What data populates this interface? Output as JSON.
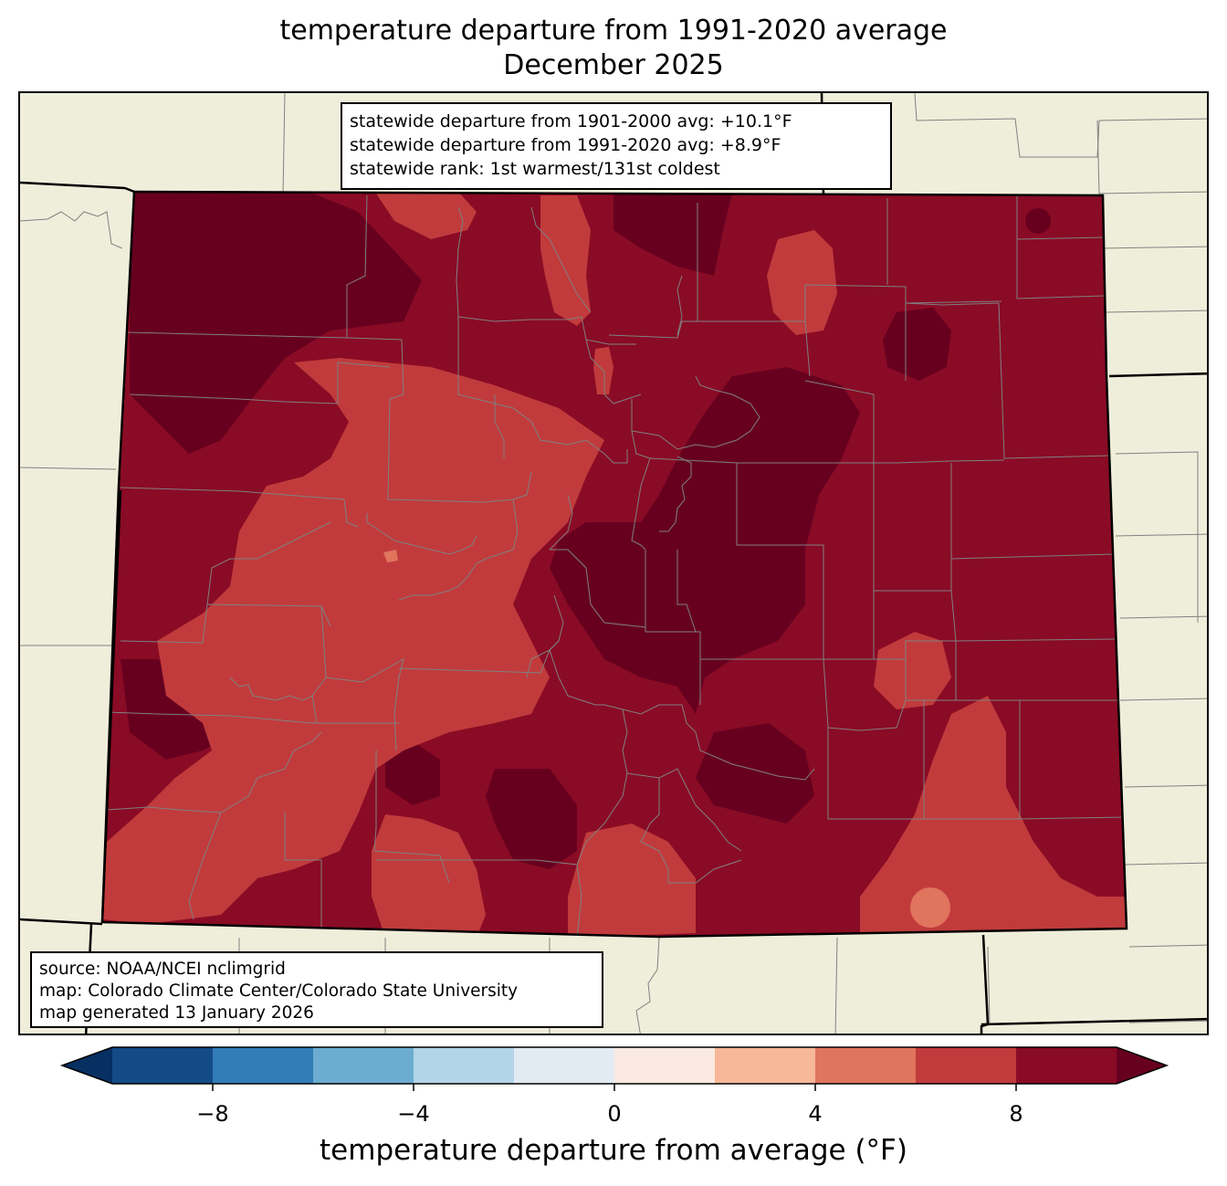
{
  "title": {
    "line1": "temperature departure from 1991-2020 average",
    "line2": "December 2025"
  },
  "stats": {
    "line1": "statewide departure from 1901-2000 avg: +10.1°F",
    "line2": "statewide departure from 1991-2020 avg: +8.9°F",
    "line3": "statewide rank: 1st warmest/131st coldest"
  },
  "source": {
    "line1": "source: NOAA/NCEI nclimgrid",
    "line2": "map: Colorado Climate Center/Colorado State University",
    "line3": "map generated 13 January 2026"
  },
  "colorbar": {
    "title": "temperature departure from average (°F)",
    "ticks": [
      {
        "value": -8,
        "label": "−8"
      },
      {
        "value": -4,
        "label": "−4"
      },
      {
        "value": 0,
        "label": "0"
      },
      {
        "value": 4,
        "label": "4"
      },
      {
        "value": 8,
        "label": "8"
      }
    ],
    "bins": [
      {
        "from": -10,
        "to": -8,
        "color": "#134b87"
      },
      {
        "from": -8,
        "to": -6,
        "color": "#327db7"
      },
      {
        "from": -6,
        "to": -4,
        "color": "#6bacd0"
      },
      {
        "from": -4,
        "to": -2,
        "color": "#b2d5e7"
      },
      {
        "from": -2,
        "to": 0,
        "color": "#e3ebf2"
      },
      {
        "from": 0,
        "to": 2,
        "color": "#faeae1"
      },
      {
        "from": 2,
        "to": 4,
        "color": "#f7b799"
      },
      {
        "from": 4,
        "to": 6,
        "color": "#e0745d"
      },
      {
        "from": 6,
        "to": 8,
        "color": "#c13b3c"
      },
      {
        "from": 8,
        "to": 10,
        "color": "#8a0b25"
      }
    ],
    "under_color": "#053061",
    "over_color": "#67001f",
    "range": [
      -10,
      10
    ]
  },
  "colors": {
    "background_land": "#efeedb",
    "state_border": "#000000",
    "county_border": "#808080",
    "very_warm": "#67001f",
    "warm_8_10": "#8a0b25",
    "warm_6_8": "#c13b3c",
    "warm_4_6": "#e0745d"
  }
}
